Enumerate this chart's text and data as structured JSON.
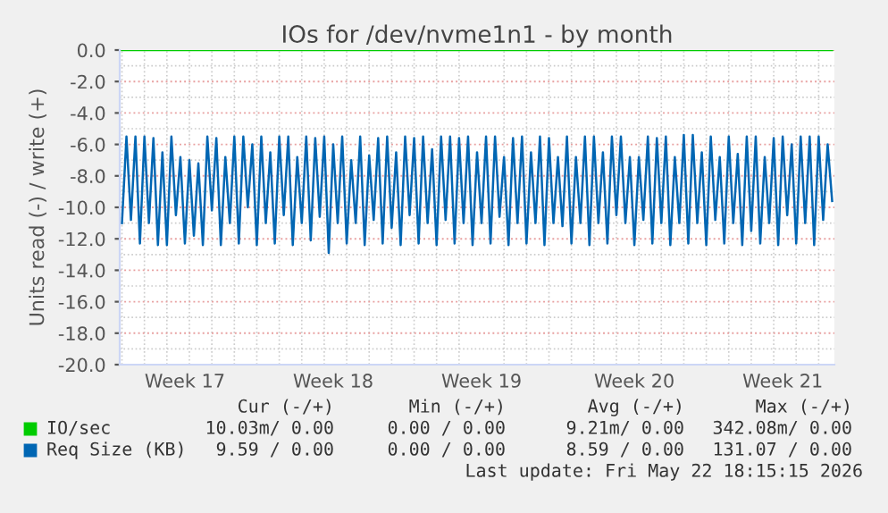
{
  "chart_data": {
    "type": "line",
    "title": "IOs for /dev/nvme1n1 - by month",
    "ylabel": "Units read (-) / write (+)",
    "ylim": [
      -20,
      0
    ],
    "yticks": [
      {
        "value": -20,
        "label": "-20.0"
      },
      {
        "value": -18,
        "label": "-18.0"
      },
      {
        "value": -16,
        "label": "-16.0"
      },
      {
        "value": -14,
        "label": "-14.0"
      },
      {
        "value": -12,
        "label": "-12.0"
      },
      {
        "value": -10,
        "label": "-10.0"
      },
      {
        "value": -8,
        "label": "-8.0"
      },
      {
        "value": -6,
        "label": "-6.0"
      },
      {
        "value": -4,
        "label": "-4.0"
      },
      {
        "value": -2,
        "label": "-2.0"
      },
      {
        "value": 0,
        "label": "0.0"
      }
    ],
    "grid": true,
    "legend": "bottom",
    "categories": [
      null,
      null,
      null,
      null,
      null,
      null,
      null,
      null,
      null,
      null,
      null,
      null,
      null,
      null,
      "Week 17",
      null,
      null,
      null,
      null,
      null,
      null,
      null,
      null,
      null,
      null,
      null,
      null,
      null,
      null,
      null,
      null,
      null,
      null,
      null,
      null,
      null,
      null,
      null,
      null,
      null,
      null,
      null,
      null,
      null,
      null,
      null,
      null,
      "Week 18",
      null,
      null,
      null,
      null,
      null,
      null,
      null,
      null,
      null,
      null,
      null,
      null,
      null,
      null,
      null,
      null,
      null,
      null,
      null,
      null,
      null,
      null,
      null,
      null,
      null,
      null,
      null,
      null,
      null,
      null,
      null,
      null,
      "Week 19",
      null,
      null,
      null,
      null,
      null,
      null,
      null,
      null,
      null,
      null,
      null,
      null,
      null,
      null,
      null,
      null,
      null,
      null,
      null,
      null,
      null,
      null,
      null,
      null,
      null,
      null,
      null,
      null,
      null,
      null,
      null,
      null,
      null,
      "Week 20",
      null,
      null,
      null,
      null,
      null,
      null,
      null,
      null,
      null,
      null,
      null,
      null,
      null,
      null,
      null,
      null,
      null,
      null,
      null,
      null,
      null,
      null,
      null,
      null,
      null,
      null,
      null,
      null,
      null,
      null,
      null,
      null,
      "Week 21",
      null,
      null,
      null,
      null,
      null,
      null,
      null,
      null,
      null,
      null,
      null
    ],
    "series": [
      {
        "name": "IO/sec",
        "color": "#00cc00",
        "values": [
          0,
          0,
          0,
          0,
          0,
          0,
          0,
          0,
          0,
          0,
          0,
          0,
          0,
          0,
          0,
          0,
          0,
          0,
          0,
          0,
          0,
          0,
          0,
          0,
          0,
          0,
          0,
          0,
          0,
          0,
          0,
          0,
          0,
          0,
          0,
          0,
          0,
          0,
          0,
          0,
          0,
          0,
          0,
          0,
          0,
          0,
          0,
          0,
          0,
          0,
          0,
          0,
          0,
          0,
          0,
          0,
          0,
          0,
          0,
          0,
          0,
          0,
          0,
          0,
          0,
          0,
          0,
          0,
          0,
          0,
          0,
          0,
          0,
          0,
          0,
          0,
          0,
          0,
          0,
          0,
          0,
          0,
          0,
          0,
          0,
          0,
          0,
          0,
          0,
          0,
          0,
          0,
          0,
          0,
          0,
          0,
          0,
          0,
          0,
          0,
          0,
          0,
          0,
          0,
          0,
          0,
          0,
          0,
          0,
          0,
          0,
          0,
          0,
          0,
          0,
          0,
          0,
          0,
          0,
          0,
          0,
          0,
          0,
          0,
          0,
          0,
          0,
          0,
          0,
          0,
          0,
          0,
          0,
          0,
          0,
          0,
          0,
          0,
          0,
          0,
          0,
          0,
          0,
          0,
          0,
          0,
          0,
          0,
          0,
          0,
          0,
          0,
          0,
          0,
          0,
          0,
          0,
          0,
          0
        ]
      },
      {
        "name": "Req Size (KB)",
        "color": "#0066b3",
        "values": [
          -11.0,
          -5.5,
          -10.8,
          -5.5,
          -12.3,
          -5.5,
          -11.0,
          -5.6,
          -12.4,
          -6.5,
          -12.4,
          -5.5,
          -10.5,
          -6.8,
          -12.3,
          -7.0,
          -11.8,
          -7.2,
          -12.4,
          -5.5,
          -10.2,
          -5.6,
          -12.4,
          -6.8,
          -11.0,
          -5.5,
          -12.3,
          -5.5,
          -10.0,
          -6.0,
          -12.4,
          -5.5,
          -11.0,
          -6.5,
          -12.3,
          -5.5,
          -10.5,
          -5.5,
          -12.4,
          -6.8,
          -11.0,
          -5.5,
          -12.1,
          -5.6,
          -10.6,
          -5.5,
          -12.9,
          -6.0,
          -11.0,
          -5.5,
          -12.3,
          -7.0,
          -11.0,
          -5.5,
          -12.4,
          -6.7,
          -10.8,
          -5.6,
          -12.3,
          -5.5,
          -11.3,
          -6.5,
          -12.4,
          -5.5,
          -10.5,
          -5.6,
          -12.3,
          -5.5,
          -11.0,
          -6.3,
          -12.4,
          -5.5,
          -10.8,
          -5.5,
          -12.3,
          -5.6,
          -11.0,
          -5.5,
          -12.4,
          -6.5,
          -11.0,
          -5.5,
          -12.3,
          -5.5,
          -10.6,
          -6.8,
          -12.4,
          -5.6,
          -11.0,
          -5.5,
          -12.3,
          -6.5,
          -11.0,
          -5.5,
          -12.4,
          -5.6,
          -11.0,
          -6.8,
          -11.2,
          -5.5,
          -12.3,
          -6.8,
          -11.0,
          -5.5,
          -12.4,
          -5.5,
          -11.0,
          -6.5,
          -12.3,
          -5.5,
          -10.5,
          -5.5,
          -11.0,
          -6.8,
          -12.4,
          -6.8,
          -10.8,
          -5.5,
          -12.3,
          -5.6,
          -11.0,
          -5.5,
          -12.4,
          -6.8,
          -11.0,
          -5.4,
          -12.3,
          -5.4,
          -11.0,
          -6.5,
          -12.4,
          -5.5,
          -10.8,
          -6.8,
          -12.3,
          -5.5,
          -11.0,
          -6.6,
          -12.4,
          -5.5,
          -11.5,
          -5.5,
          -12.3,
          -6.8,
          -11.0,
          -5.6,
          -12.4,
          -5.5,
          -10.5,
          -6.0,
          -12.3,
          -5.5,
          -11.0,
          -5.5,
          -12.4,
          -5.5,
          -10.8,
          -6.0,
          -9.6
        ]
      }
    ],
    "annotations": [
      "Cur (-/+)",
      "Min (-/+)",
      "Avg (-/+)",
      "Max (-/+)",
      "10.03m/ 0.00",
      "0.00 / 0.00",
      "9.21m/ 0.00",
      "342.08m/ 0.00",
      "9.59 / 0.00",
      "0.00 / 0.00",
      "8.59 / 0.00",
      "131.07 / 0.00",
      "Last update: Fri May 22 18:15:15 2026"
    ]
  }
}
